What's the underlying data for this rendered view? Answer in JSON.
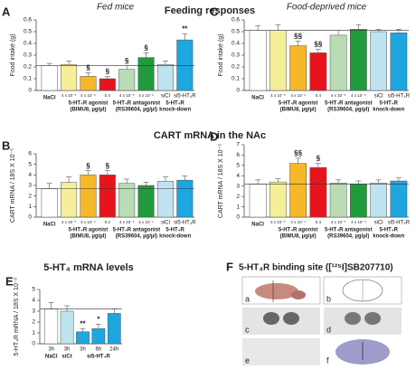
{
  "section_titles": [
    "Feeding responses",
    "CART mRNA in the NAc",
    "5-HT₄ mRNA levels"
  ],
  "chart_data": [
    {
      "type": "bar",
      "panel": "A",
      "title": "Fed mice",
      "ylabel": "Food intake (g)",
      "categories": [
        null,
        "4 x 10⁻⁵",
        "4 x 10⁻⁴",
        "0.4",
        "4 x 10⁻⁵",
        "4 x 10⁻⁴",
        "siCl",
        "si5-HT₄R"
      ],
      "groups": [
        [
          "NaCl"
        ],
        [
          "5-HT₄R agonist",
          "(BIMU8, µg/µl)"
        ],
        [
          "5-HT₄R antagonist",
          "(RS39604, µg/µl)"
        ],
        [
          "5-HT₄R",
          "knock-down"
        ]
      ],
      "values": [
        0.21,
        0.22,
        0.12,
        0.1,
        0.18,
        0.28,
        0.22,
        0.43
      ],
      "errors": [
        0.02,
        0.03,
        0.03,
        0.02,
        0.03,
        0.04,
        0.03,
        0.05
      ],
      "colors": [
        "#ffffff",
        "#f5ee9a",
        "#f6b829",
        "#e8141c",
        "#b9dcb5",
        "#1f9b3c",
        "#bfe3ef",
        "#1ea6e0"
      ],
      "annotations": [
        null,
        null,
        "§",
        "§",
        "§",
        "§",
        null,
        "**"
      ],
      "ylim": [
        0,
        0.6
      ],
      "yticks": [
        0,
        0.1,
        0.2,
        0.3,
        0.4,
        0.5,
        0.6
      ]
    },
    {
      "type": "bar",
      "panel": "C",
      "title": "Food-deprived mice",
      "ylabel": "Food intake (g)",
      "categories": [
        null,
        "4 x 10⁻⁵",
        "4 x 10⁻⁴",
        "0.4",
        "4 x 10⁻⁵",
        "4 x 10⁻⁴",
        "siCl",
        "si5-HT₄R"
      ],
      "groups": [
        [
          "NaCl"
        ],
        [
          "5-HT₄R agonist",
          "(BIMU8, µg/µl)"
        ],
        [
          "5-HT₄R antagonist",
          "(RS39604, µg/µl)"
        ],
        [
          "5-HT₄R",
          "knock-down"
        ]
      ],
      "values": [
        0.51,
        0.51,
        0.38,
        0.32,
        0.47,
        0.52,
        0.5,
        0.49
      ],
      "errors": [
        0.04,
        0.05,
        0.04,
        0.03,
        0.04,
        0.04,
        0.02,
        0.03
      ],
      "colors": [
        "#ffffff",
        "#f5ee9a",
        "#f6b829",
        "#e8141c",
        "#b9dcb5",
        "#1f9b3c",
        "#bfe3ef",
        "#1ea6e0"
      ],
      "annotations": [
        null,
        null,
        "§§",
        "§§",
        null,
        null,
        null,
        null
      ],
      "ylim": [
        0,
        0.6
      ],
      "yticks": [
        0,
        0.1,
        0.2,
        0.3,
        0.4,
        0.5,
        0.6
      ]
    },
    {
      "type": "bar",
      "panel": "B",
      "ylabel": "CART mRNA / 18S X 10⁻⁵",
      "categories": [
        null,
        "4 x 10⁻⁵",
        "4 x 10⁻⁴",
        "0.4",
        "4 x 10⁻⁵",
        "4 x 10⁻⁴",
        "siCl",
        "si5-HT₄R"
      ],
      "groups": [
        [
          "NaCl"
        ],
        [
          "5-HT₄R agonist",
          "(BIMU8, µg/µl)"
        ],
        [
          "5-HT₄R antagonist",
          "(RS39604, µg/µl)"
        ],
        [
          "5-HT₄R",
          "knock-down"
        ]
      ],
      "values": [
        2.7,
        3.3,
        4.0,
        4.0,
        3.2,
        3.0,
        3.4,
        3.5
      ],
      "errors": [
        0.5,
        0.5,
        0.4,
        0.4,
        0.4,
        0.3,
        0.4,
        0.4
      ],
      "colors": [
        "#ffffff",
        "#f5ee9a",
        "#f6b829",
        "#e8141c",
        "#b9dcb5",
        "#1f9b3c",
        "#bfe3ef",
        "#1ea6e0"
      ],
      "annotations": [
        null,
        null,
        "§",
        "§",
        null,
        null,
        null,
        null
      ],
      "ylim": [
        0,
        6
      ],
      "yticks": [
        0,
        1,
        2,
        3,
        4,
        5,
        6
      ]
    },
    {
      "type": "bar",
      "panel": "D",
      "ylabel": "CART mRNA / 18S X 10⁻⁵",
      "categories": [
        null,
        "4 x 10⁻⁵",
        "4 x 10⁻⁴",
        "0.4",
        "4 x 10⁻⁵",
        "4 x 10⁻⁴",
        "siCl",
        "si5-HT₄R"
      ],
      "groups": [
        [
          "NaCl"
        ],
        [
          "5-HT₄R agonist",
          "(BIMU8, µg/µl)"
        ],
        [
          "5-HT₄R antagonist",
          "(RS39604, µg/µl)"
        ],
        [
          "5-HT₄R",
          "knock-down"
        ]
      ],
      "values": [
        3.2,
        3.4,
        5.2,
        4.8,
        3.3,
        3.2,
        3.3,
        3.5
      ],
      "errors": [
        0.4,
        0.3,
        0.5,
        0.4,
        0.3,
        0.3,
        0.3,
        0.3
      ],
      "colors": [
        "#ffffff",
        "#f5ee9a",
        "#f6b829",
        "#e8141c",
        "#b9dcb5",
        "#1f9b3c",
        "#bfe3ef",
        "#1ea6e0"
      ],
      "annotations": [
        null,
        null,
        "§§",
        "§",
        null,
        null,
        null,
        null
      ],
      "ylim": [
        0,
        7
      ],
      "yticks": [
        0,
        1,
        2,
        3,
        4,
        5,
        6,
        7
      ]
    },
    {
      "type": "bar",
      "panel": "E",
      "ylabel": "5-HT₄R mRNA / 18S X 10⁻⁵",
      "categories": [
        "3h",
        "3h",
        "3h",
        "6h",
        "24h"
      ],
      "groups": [
        [
          "NaCl"
        ],
        [
          "siCt"
        ],
        [
          "si5-HT₄R"
        ]
      ],
      "values": [
        3.2,
        3.0,
        1.1,
        1.4,
        2.8
      ],
      "errors": [
        0.6,
        0.5,
        0.3,
        0.4,
        0.4
      ],
      "colors": [
        "#ffffff",
        "#bfe3ef",
        "#1ea6e0",
        "#1ea6e0",
        "#1ea6e0"
      ],
      "annotations": [
        null,
        null,
        "**",
        "*",
        null
      ],
      "ylim": [
        0,
        5
      ],
      "yticks": [
        0,
        1,
        2,
        3,
        4,
        5
      ]
    }
  ],
  "panel_f": {
    "panel": "F",
    "title": "5-HT₄R binding site ([¹²⁵I]SB207710)",
    "images": [
      "a",
      "b",
      "c",
      "d",
      "e",
      "f"
    ]
  }
}
